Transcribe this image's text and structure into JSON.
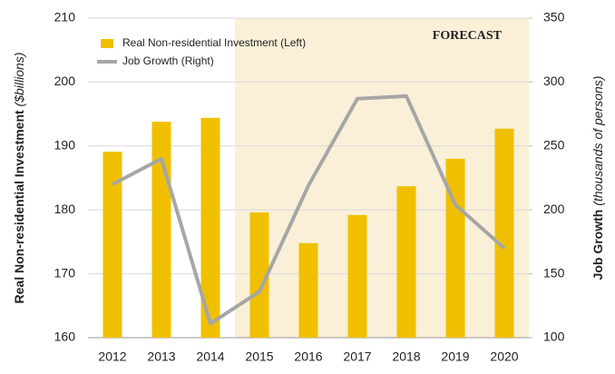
{
  "chart_data": {
    "type": "bar-line",
    "categories": [
      "2012",
      "2013",
      "2014",
      "2015",
      "2016",
      "2017",
      "2018",
      "2019",
      "2020"
    ],
    "series": [
      {
        "name": "Real Non-residential Investment (Left)",
        "color": "#f0c000",
        "type": "bar",
        "axis": "y",
        "values": [
          189.1,
          193.8,
          194.4,
          179.6,
          174.8,
          179.2,
          183.7,
          188.0,
          192.7
        ]
      },
      {
        "name": "Job Growth (Right)",
        "color": "#a6a6a6",
        "type": "line",
        "axis": "y2",
        "values": [
          220,
          240,
          111,
          136,
          219,
          287,
          289,
          204,
          170
        ]
      }
    ],
    "ylim": [
      160,
      210
    ],
    "yticks": [
      160,
      170,
      180,
      190,
      200,
      210
    ],
    "y2lim": [
      100,
      350
    ],
    "y2ticks": [
      100,
      150,
      200,
      250,
      300,
      350
    ],
    "y_label": {
      "main": "Real Non-residential Investment",
      "unit": "($billions)"
    },
    "y2_label": {
      "main": "Job Growth",
      "unit": "(thousands of persons)"
    },
    "annotation": "FORECAST",
    "shaded_from": "2015",
    "shade_color": "#faf0d7",
    "grid": true,
    "legend": "upper left"
  }
}
